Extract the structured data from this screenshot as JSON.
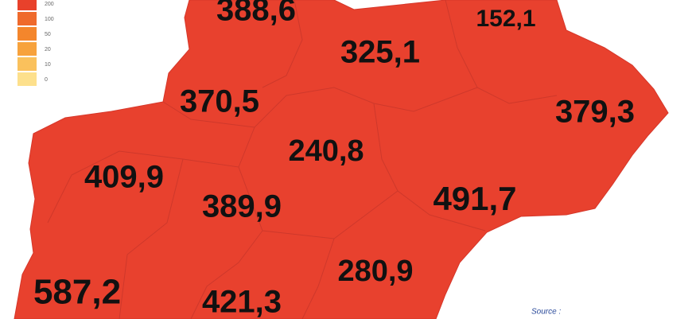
{
  "legend": {
    "items": [
      {
        "label": "200",
        "color": "#e8412b"
      },
      {
        "label": "100",
        "color": "#ef6a2c"
      },
      {
        "label": "50",
        "color": "#f4862c"
      },
      {
        "label": "20",
        "color": "#f7a23c"
      },
      {
        "label": "10",
        "color": "#fac15c"
      },
      {
        "label": "0",
        "color": "#fde08c"
      }
    ]
  },
  "regions": [
    {
      "label": "388,6"
    },
    {
      "label": "325,1"
    },
    {
      "label": "152,1"
    },
    {
      "label": "379,3"
    },
    {
      "label": "370,5"
    },
    {
      "label": "240,8"
    },
    {
      "label": "409,9"
    },
    {
      "label": "389,9"
    },
    {
      "label": "491,7"
    },
    {
      "label": "280,9"
    },
    {
      "label": "587,2"
    },
    {
      "label": "421,3"
    }
  ],
  "source": "Source :"
}
